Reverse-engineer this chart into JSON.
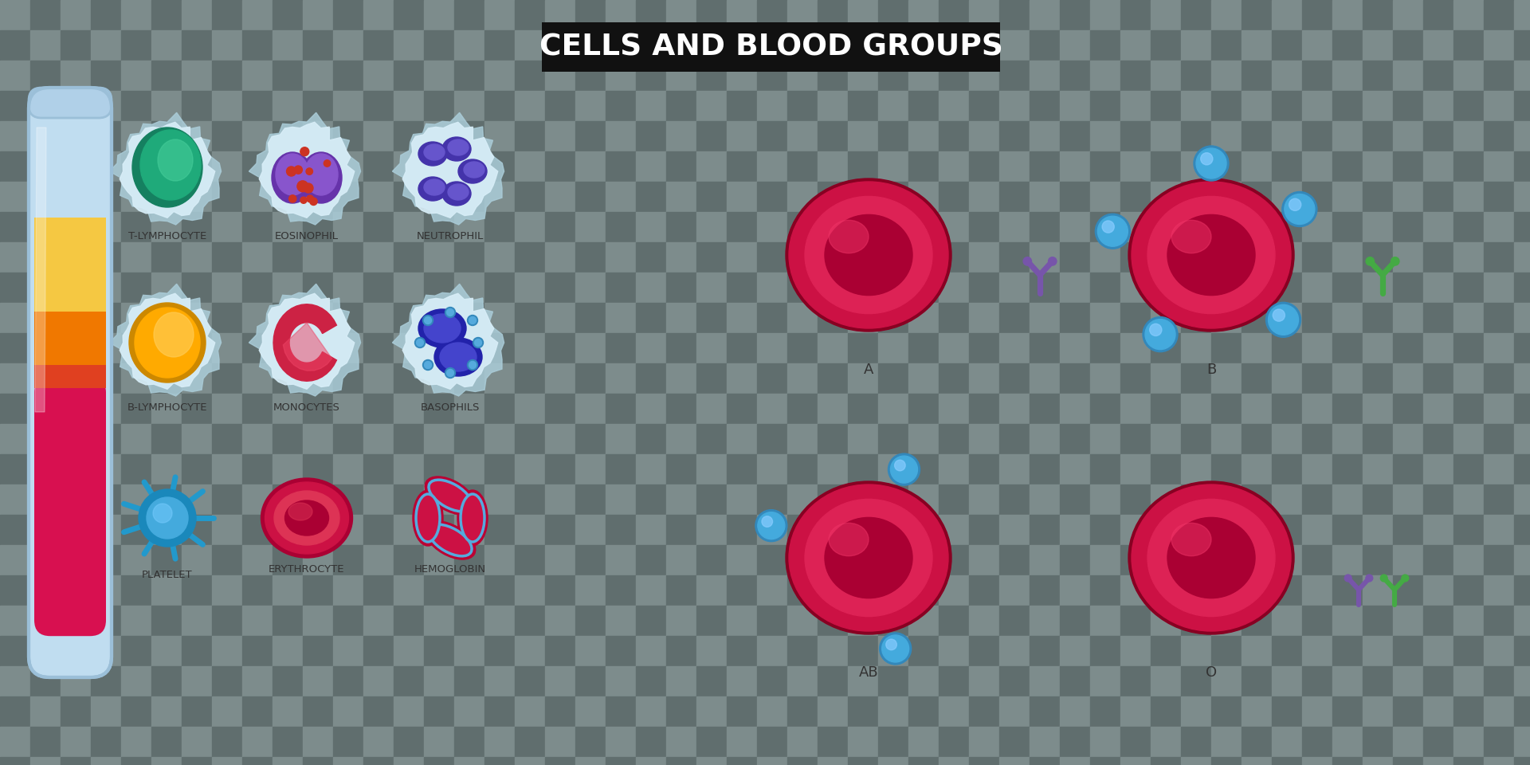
{
  "title": "CELLS AND BLOOD GROUPS",
  "title_box_color": "#111111",
  "title_text_color": "#ffffff",
  "checker_light": "#7d8c8c",
  "checker_dark": "#606e6e",
  "checker_size": 38,
  "labels": {
    "t_lymphocyte": "T-LYMPHOCYTE",
    "eosinophil": "EOSINOPHIL",
    "neutrophil": "NEUTROPHIL",
    "b_lymphocyte": "B-LYMPHOCYTE",
    "monocytes": "MONOCYTES",
    "basophils": "BASOPHILS",
    "platelet": "PLATELET",
    "erythrocyte": "ERYTHROCYTE",
    "hemoglobin": "HEMOGLOBIN",
    "blood_a": "A",
    "blood_b": "B",
    "blood_ab": "AB",
    "blood_o": "O"
  }
}
